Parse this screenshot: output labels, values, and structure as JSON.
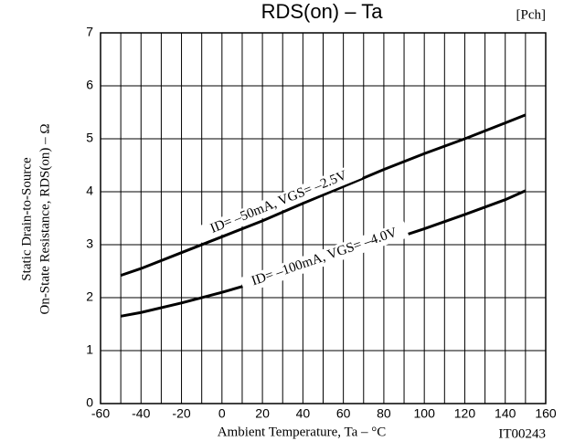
{
  "chart_data": {
    "type": "line",
    "title": "RDS(on) – Ta",
    "subtitle": "[Pch]",
    "y_label": [
      "Static Drain-to-Source",
      "On-State Resistance, RDS(on) – Ω"
    ],
    "x_label": "Ambient Temperature, Ta – °C",
    "figure_id": "IT00243",
    "x": [
      -50,
      -40,
      -20,
      0,
      20,
      40,
      60,
      80,
      100,
      120,
      140,
      150
    ],
    "series": [
      {
        "name": "ID= –50mA, VGS= –2.5V",
        "color": "#000000",
        "values": [
          2.42,
          2.55,
          2.85,
          3.15,
          3.45,
          3.78,
          4.1,
          4.42,
          4.72,
          5.0,
          5.3,
          5.45
        ]
      },
      {
        "name": "ID= –100mA, VGS= –4.0V",
        "color": "#000000",
        "values": [
          1.65,
          1.72,
          1.9,
          2.1,
          2.32,
          2.55,
          2.8,
          3.05,
          3.3,
          3.57,
          3.85,
          4.02
        ]
      }
    ],
    "xlim": [
      -60,
      160
    ],
    "ylim": [
      0,
      7
    ],
    "xticks": [
      -60,
      -40,
      -20,
      0,
      20,
      40,
      60,
      80,
      100,
      120,
      140,
      160
    ],
    "xgrid": [
      -60,
      -50,
      -40,
      -30,
      -20,
      -10,
      0,
      10,
      20,
      30,
      40,
      50,
      60,
      70,
      80,
      90,
      100,
      110,
      120,
      130,
      140,
      150,
      160
    ],
    "yticks": [
      0,
      1,
      2,
      3,
      4,
      5,
      6,
      7
    ],
    "grid": true,
    "legend": "inline"
  }
}
